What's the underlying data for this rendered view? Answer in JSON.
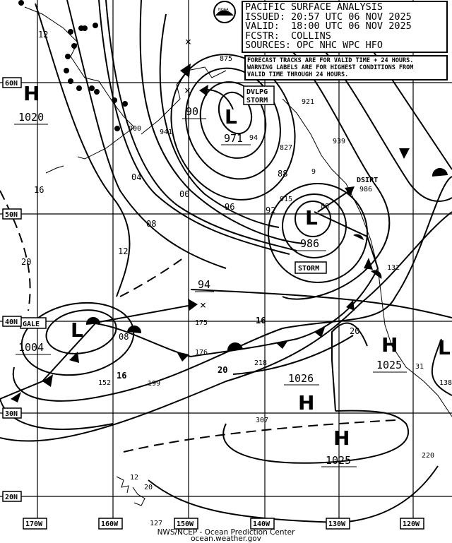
{
  "header": {
    "lines": [
      "PACIFIC SURFACE ANALYSIS",
      "ISSUED: 20:57 UTC 06 NOV 2025",
      "VALID:  18:00 UTC 06 NOV 2025",
      "FCSTR:  COLLINS",
      "SOURCES: OPC NHC WPC HFO"
    ]
  },
  "note": {
    "lines": [
      "FORECAST TRACKS ARE FOR VALID TIME + 24 HOURS.",
      "WARNING LABELS ARE FOR HIGHEST CONDITIONS FROM",
      "VALID TIME THROUGH 24 HOURS."
    ]
  },
  "logo": {
    "text": "NOAA",
    "icon": "noaa-logo"
  },
  "grid": {
    "latitudes": [
      "60N",
      "50N",
      "40N",
      "30N",
      "20N"
    ],
    "longitudes": [
      "170W",
      "160W",
      "150W",
      "140W",
      "130W",
      "120W"
    ]
  },
  "centers": [
    {
      "type": "L",
      "pressure": "971",
      "forecast_pressure": "90"
    },
    {
      "type": "L",
      "pressure": "986"
    },
    {
      "type": "L",
      "pressure": "1004",
      "forecast_pressure": "94"
    },
    {
      "type": "H",
      "pressure": "1020"
    },
    {
      "type": "H",
      "pressure": "1026"
    },
    {
      "type": "H",
      "pressure": "1025"
    },
    {
      "type": "H",
      "pressure": "1025"
    },
    {
      "type": "L"
    }
  ],
  "warnings": [
    "DVLPG STORM",
    "STORM",
    "GALE",
    "DSIPT"
  ],
  "isobar_labels": [
    "12",
    "16",
    "20",
    "04",
    "00",
    "08",
    "12",
    "96",
    "92",
    "88",
    "08",
    "16",
    "16",
    "20",
    "20"
  ],
  "observations": [
    "875",
    "941",
    "000",
    "921",
    "94",
    "827",
    "88",
    "915",
    "939",
    "9",
    "986",
    "132",
    "175",
    "176",
    "218",
    "152",
    "199",
    "307",
    "31",
    "138",
    "220",
    "12",
    "20",
    "127"
  ],
  "footer": {
    "agency": "NWS/NCEP - Ocean Prediction Center",
    "url": "ocean.weather.gov"
  }
}
